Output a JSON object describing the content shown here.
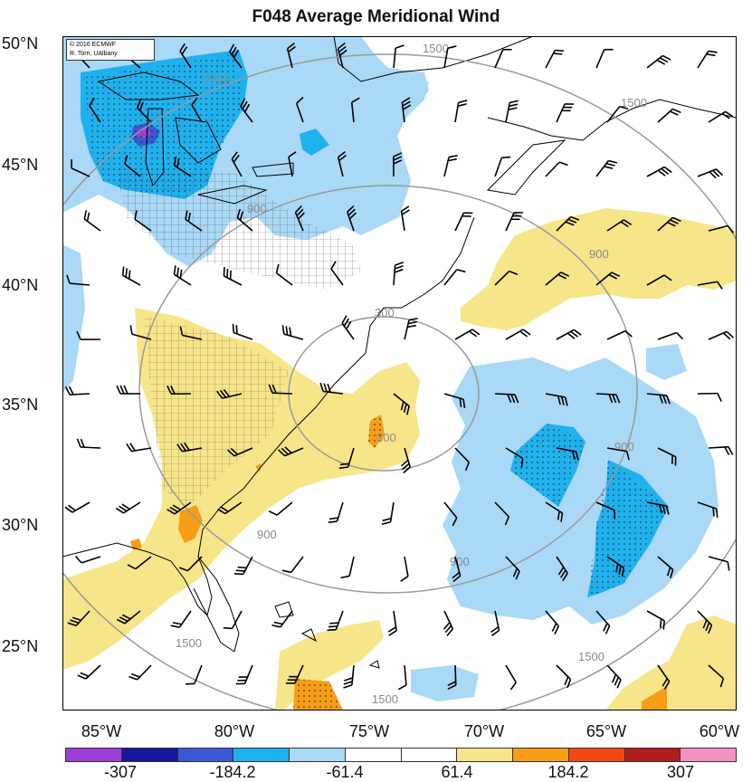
{
  "title": "F048 Average Meridional Wind",
  "credit": {
    "line1": "© 2016 ECMWF",
    "line2": "R. Torn, UAlbany"
  },
  "latitude_labels": [
    "50°N",
    "45°N",
    "40°N",
    "35°N",
    "30°N",
    "25°N"
  ],
  "longitude_labels": [
    "85°W",
    "80°W",
    "75°W",
    "70°W",
    "65°W",
    "60°W"
  ],
  "colorbar": {
    "colors": [
      "#9b3fd8",
      "#16179b",
      "#3a58d4",
      "#1fb1ee",
      "#a9d9f6",
      "#ffffff",
      "#ffffff",
      "#f7e58a",
      "#f79d16",
      "#f14b13",
      "#b01c1c",
      "#f291c2"
    ],
    "labels": [
      "-307",
      "-184.2",
      "-61.4",
      "61.4",
      "184.2",
      "307"
    ]
  },
  "contour_labels": [
    "300",
    "300",
    "900",
    "900",
    "900",
    "900",
    "900",
    "1500",
    "1500",
    "1500",
    "1500",
    "1500",
    "1500"
  ],
  "map_colors": {
    "positive_light": "#f7e58a",
    "positive_medium": "#f79d16",
    "negative_light": "#a9d9f6",
    "negative_medium": "#1fb1ee",
    "negative_dark": "#3a58d4",
    "negative_darkest": "#9b3fd8",
    "contour": "#9a9a9a",
    "coast": "#000000"
  }
}
